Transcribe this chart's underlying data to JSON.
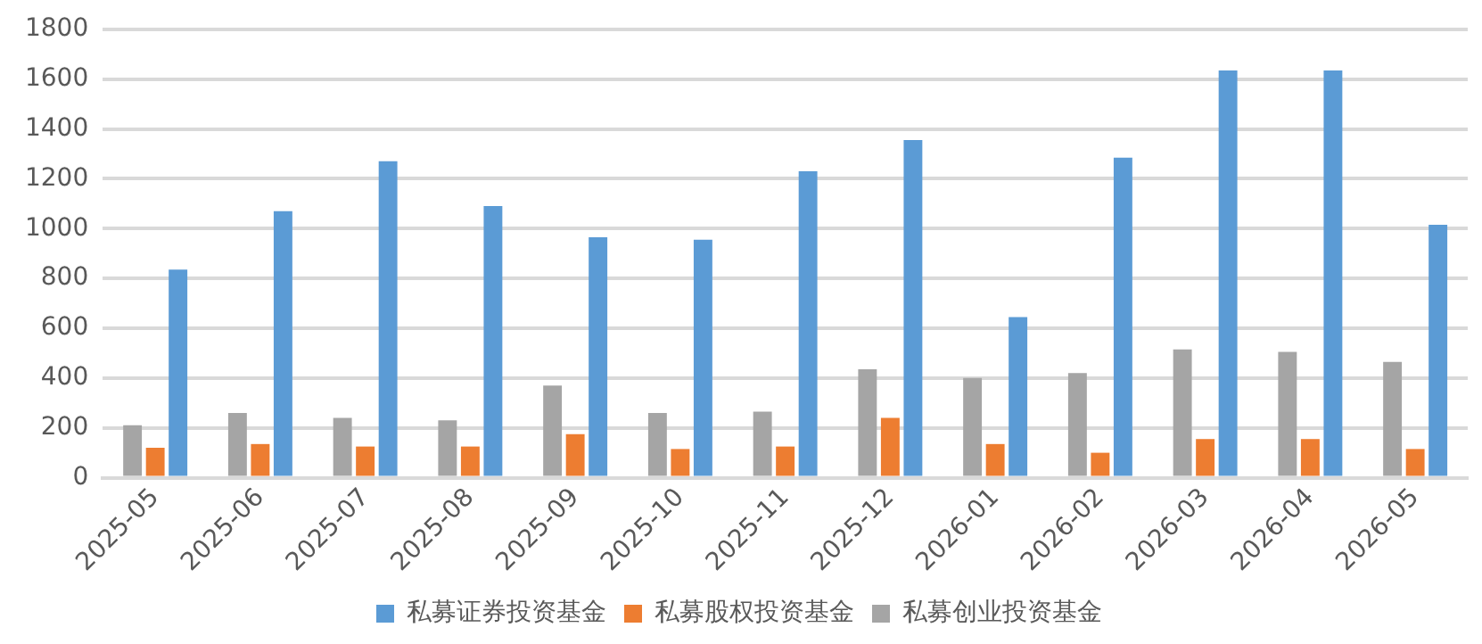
{
  "chart_data": {
    "type": "bar",
    "categories": [
      "2025-05",
      "2025-06",
      "2025-07",
      "2025-08",
      "2025-09",
      "2025-10",
      "2025-11",
      "2025-12",
      "2026-01",
      "2026-02",
      "2026-03",
      "2026-04",
      "2026-05"
    ],
    "series": [
      {
        "name": "私募证券投资基金",
        "color": "#5b9bd5",
        "values": [
          835,
          1070,
          1270,
          1090,
          965,
          955,
          1230,
          1355,
          645,
          1285,
          1635,
          1635,
          1015
        ]
      },
      {
        "name": "私募股权投资基金",
        "color": "#ed7d31",
        "values": [
          120,
          135,
          125,
          125,
          175,
          115,
          125,
          240,
          135,
          100,
          155,
          155,
          115
        ]
      },
      {
        "name": "私募创业投资基金",
        "color": "#a5a5a5",
        "values": [
          210,
          260,
          240,
          230,
          370,
          260,
          265,
          435,
          400,
          420,
          515,
          505,
          465
        ]
      }
    ],
    "ylim": [
      0,
      1800
    ],
    "yticks": [
      0,
      200,
      400,
      600,
      800,
      1000,
      1200,
      1400,
      1600,
      1800
    ],
    "grid": "y",
    "legend": "bottom"
  }
}
